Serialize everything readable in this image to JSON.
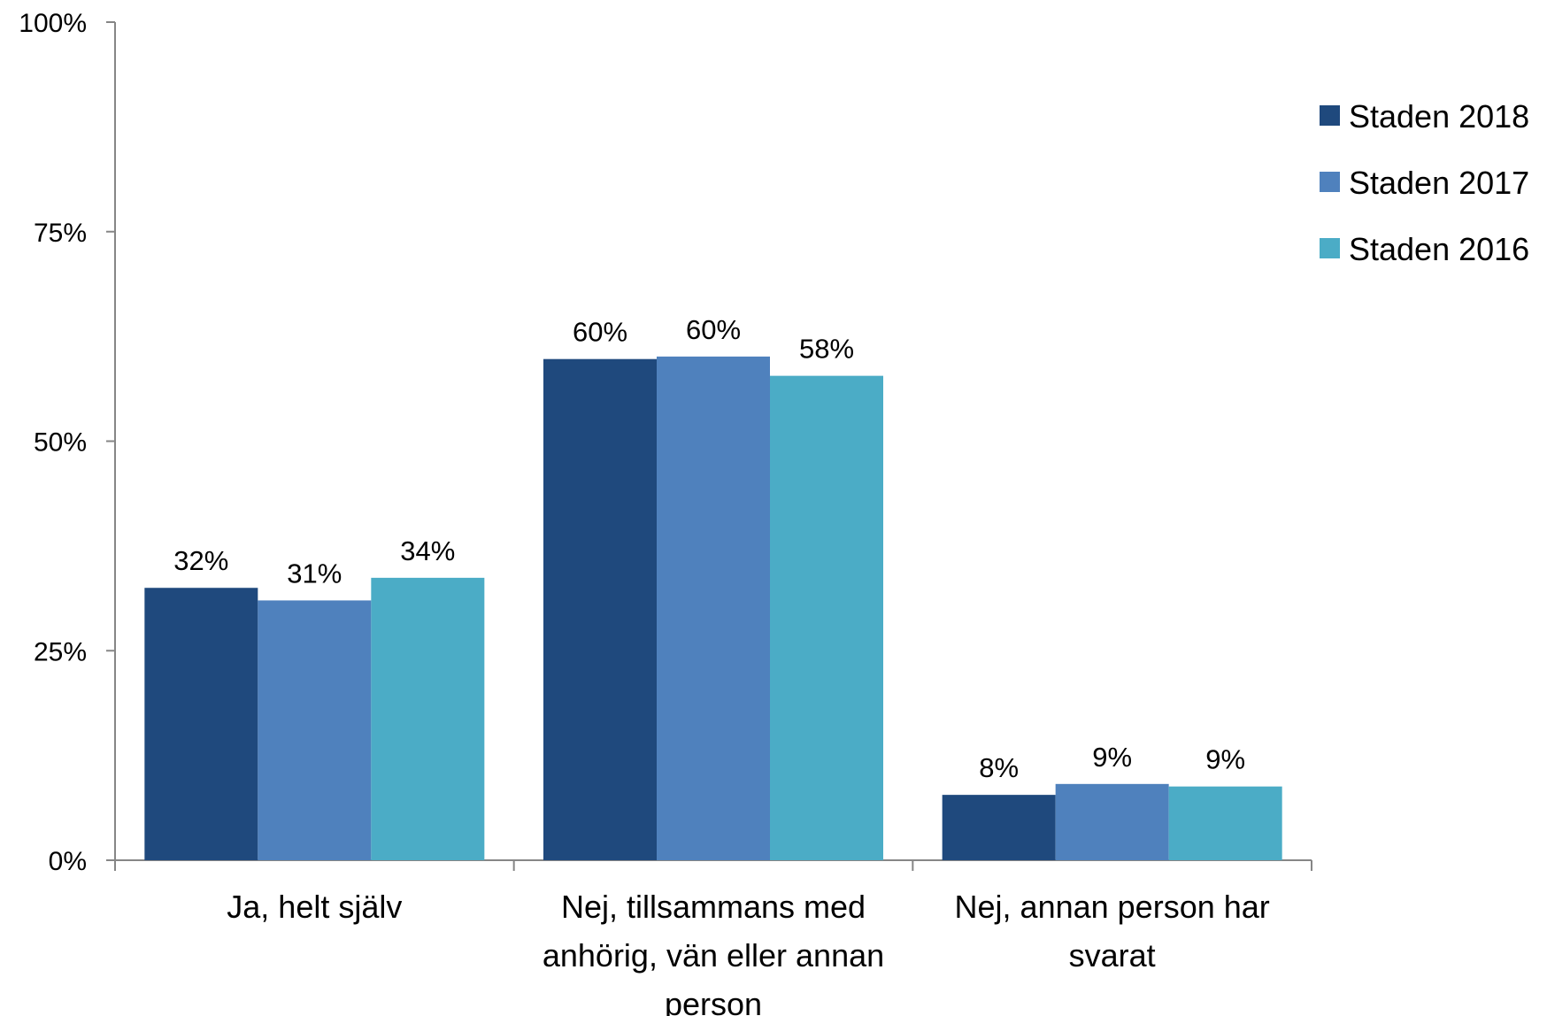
{
  "chart_data": {
    "type": "bar",
    "categories": [
      [
        "Ja, helt själv"
      ],
      [
        "Nej, tillsammans med",
        "anhörig, vän eller annan",
        "person"
      ],
      [
        "Nej,  annan person har",
        "svarat"
      ]
    ],
    "series": [
      {
        "name": "Staden 2018",
        "color": "#1F497D",
        "values": [
          32.5,
          59.8,
          7.8
        ],
        "labels": [
          "32%",
          "60%",
          "8%"
        ]
      },
      {
        "name": "Staden 2017",
        "color": "#4F81BD",
        "values": [
          31.0,
          60.1,
          9.1
        ],
        "labels": [
          "31%",
          "60%",
          "9%"
        ]
      },
      {
        "name": "Staden 2016",
        "color": "#4BACC6",
        "values": [
          33.7,
          57.8,
          8.8
        ],
        "labels": [
          "34%",
          "58%",
          "9%"
        ]
      }
    ],
    "yticks": [
      0,
      25,
      50,
      75,
      100
    ],
    "ytick_labels": [
      "0%",
      "25%",
      "50%",
      "75%",
      "100%"
    ],
    "ylim": [
      0,
      100
    ],
    "grid": false,
    "legend": "right"
  }
}
